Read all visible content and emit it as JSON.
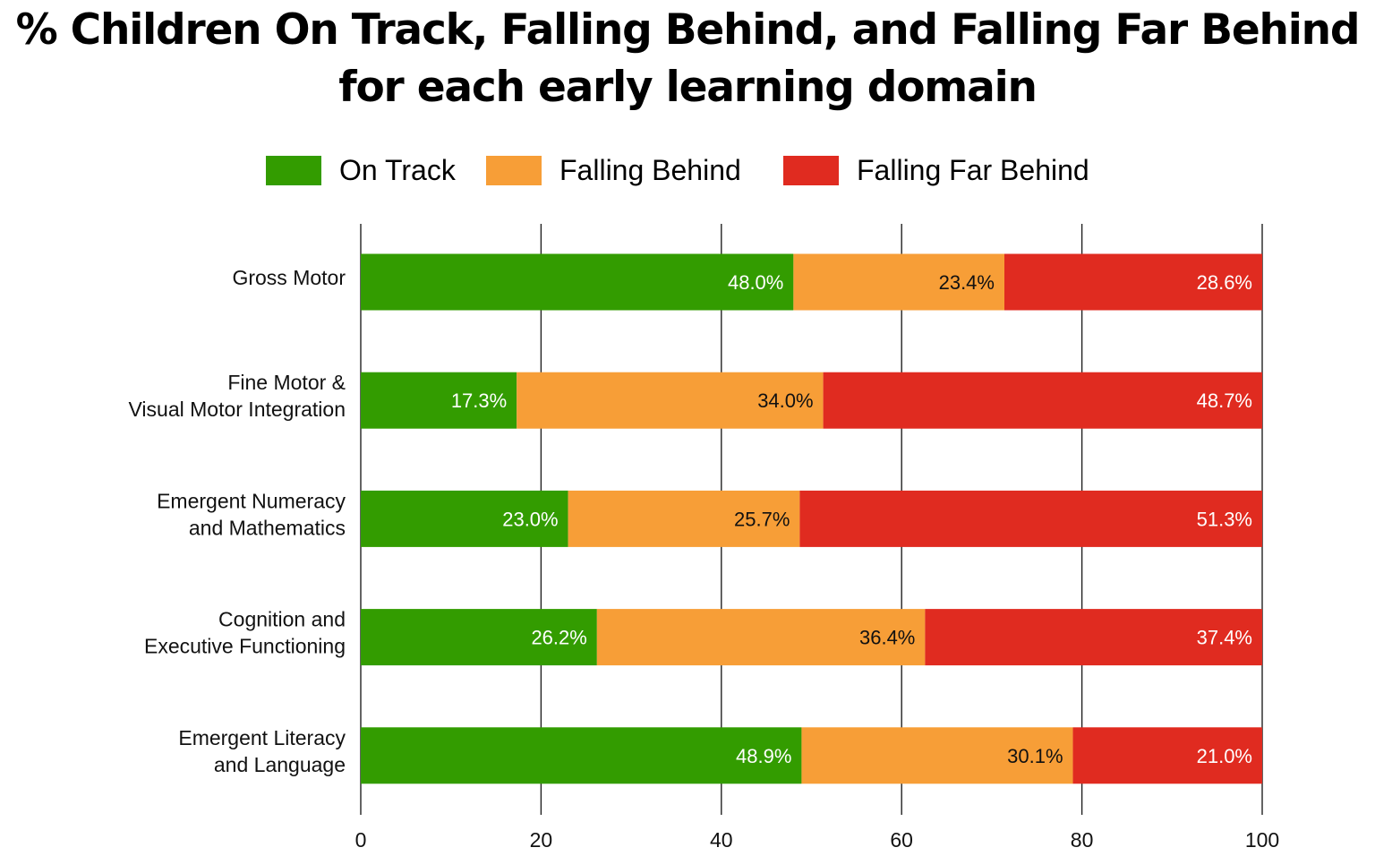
{
  "chart_data": {
    "type": "bar",
    "orientation": "horizontal",
    "stacked": true,
    "title_lines": [
      "% Children On Track, Falling Behind, and Falling Far Behind",
      "for each early learning domain"
    ],
    "categories": [
      [
        "Gross Motor"
      ],
      [
        "Fine Motor &",
        "Visual Motor Integration"
      ],
      [
        "Emergent Numeracy",
        "and Mathematics"
      ],
      [
        "Cognition and",
        "Executive Functioning"
      ],
      [
        "Emergent Literacy",
        "and Language"
      ]
    ],
    "series": [
      {
        "name": "On Track",
        "color": "#339c00",
        "label_color": "#ffffff",
        "values": [
          48.0,
          17.3,
          23.0,
          26.2,
          48.9
        ],
        "labels": [
          "48.0%",
          "17.3%",
          "23.0%",
          "26.2%",
          "48.9%"
        ]
      },
      {
        "name": "Falling Behind",
        "color": "#f79e37",
        "label_color": "#111111",
        "values": [
          23.4,
          34.0,
          25.7,
          36.4,
          30.1
        ],
        "labels": [
          "23.4%",
          "34.0%",
          "25.7%",
          "36.4%",
          "30.1%"
        ]
      },
      {
        "name": "Falling Far Behind",
        "color": "#e02b20",
        "label_color": "#ffffff",
        "values": [
          28.6,
          48.7,
          51.3,
          37.4,
          21.0
        ],
        "labels": [
          "28.6%",
          "48.7%",
          "51.3%",
          "37.4%",
          "21.0%"
        ]
      }
    ],
    "xlim": [
      0,
      100
    ],
    "xticks": [
      0,
      20,
      40,
      60,
      80,
      100
    ],
    "xtick_labels": [
      "0",
      "20",
      "40",
      "60",
      "80",
      "100"
    ],
    "grid": "vertical",
    "grid_color": "#222222",
    "legend_position": "top-center"
  }
}
